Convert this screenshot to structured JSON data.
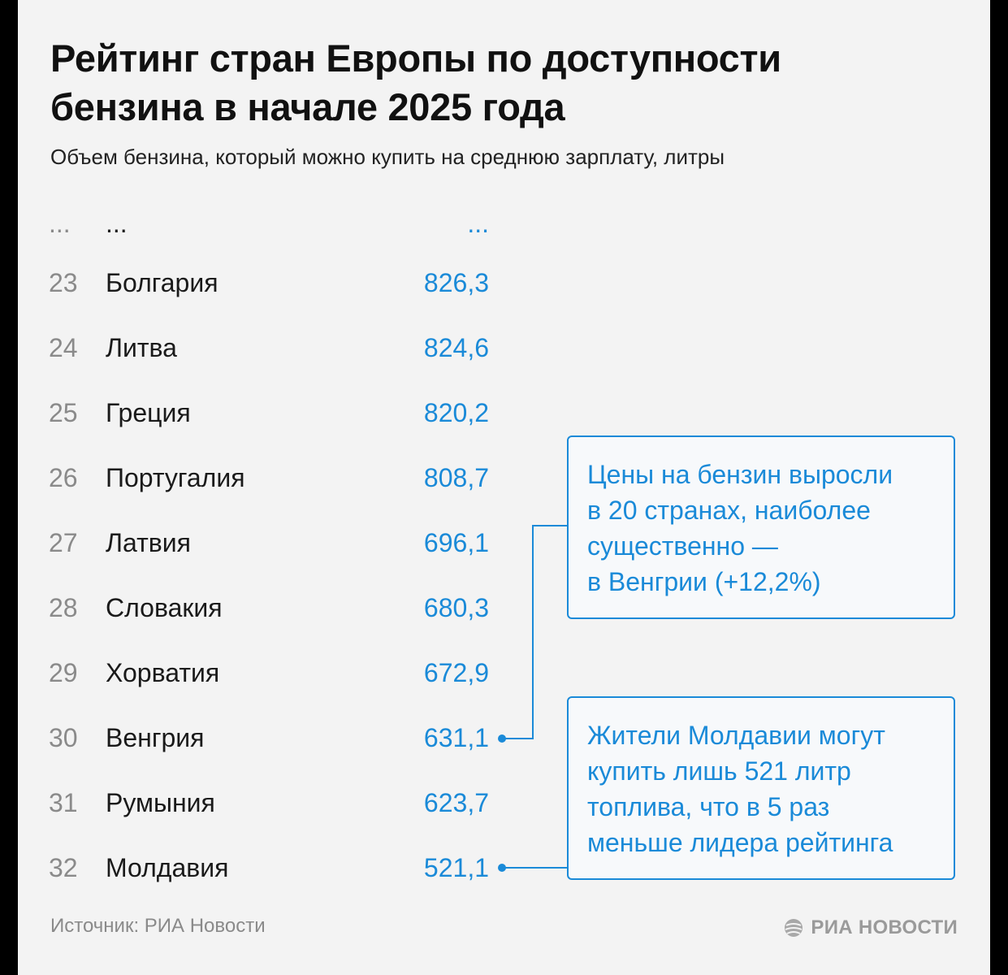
{
  "title_lines": [
    "Рейтинг стран Европы по доступности",
    "бензина в начале 2025 года"
  ],
  "subtitle": "Объем бензина, который можно купить на среднюю зарплату, литры",
  "chart_data": {
    "type": "table",
    "ellipsis": {
      "rank": "...",
      "country": "...",
      "value": "..."
    },
    "rows": [
      {
        "rank": "23",
        "country": "Болгария",
        "value": 826.3,
        "label": "826,3"
      },
      {
        "rank": "24",
        "country": "Литва",
        "value": 824.6,
        "label": "824,6"
      },
      {
        "rank": "25",
        "country": "Греция",
        "value": 820.2,
        "label": "820,2"
      },
      {
        "rank": "26",
        "country": "Португалия",
        "value": 808.7,
        "label": "808,7"
      },
      {
        "rank": "27",
        "country": "Латвия",
        "value": 696.1,
        "label": "696,1"
      },
      {
        "rank": "28",
        "country": "Словакия",
        "value": 680.3,
        "label": "680,3"
      },
      {
        "rank": "29",
        "country": "Хорватия",
        "value": 672.9,
        "label": "672,9"
      },
      {
        "rank": "30",
        "country": "Венгрия",
        "value": 631.1,
        "label": "631,1"
      },
      {
        "rank": "31",
        "country": "Румыния",
        "value": 623.7,
        "label": "623,7"
      },
      {
        "rank": "32",
        "country": "Молдавия",
        "value": 521.1,
        "label": "521,1"
      }
    ],
    "annotations": [
      {
        "target_rank": "30",
        "lines": [
          "Цены на бензин выросли",
          "в 20 странах, наиболее",
          "существенно —",
          "в Венгрии (+12,2%)"
        ]
      },
      {
        "target_rank": "32",
        "lines": [
          "Жители Молдавии могут",
          "купить лишь 521 литр",
          "топлива, что в 5 раз",
          "меньше лидера рейтинга"
        ]
      }
    ]
  },
  "source": "Источник: РИА Новости",
  "logo_text": "РИА НОВОСТИ",
  "colors": {
    "accent": "#1a8ad8",
    "background": "#f3f3f3",
    "muted": "#8a8a8a"
  }
}
